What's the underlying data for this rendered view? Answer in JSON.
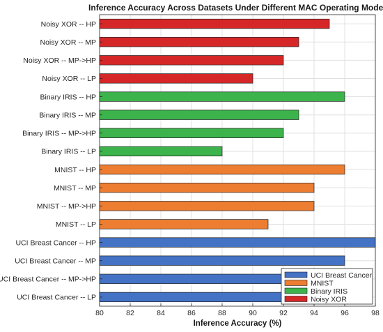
{
  "chart_data": {
    "type": "bar",
    "orientation": "horizontal",
    "title": "Inference Accuracy Across Datasets Under Different MAC Operating Modes",
    "xlabel": "Inference Accuracy (%)",
    "ylabel": "",
    "xlim": [
      80,
      98
    ],
    "xticks": [
      80,
      82,
      84,
      86,
      88,
      90,
      92,
      94,
      96,
      98
    ],
    "grid": true,
    "legend_position": "bottom-right",
    "categories": [
      "Noisy XOR -- HP",
      "Noisy XOR -- MP",
      "Noisy XOR -- MP->HP",
      "Noisy XOR -- LP",
      "Binary IRIS -- HP",
      "Binary IRIS -- MP",
      "Binary IRIS -- MP->HP",
      "Binary IRIS -- LP",
      "MNIST -- HP",
      "MNIST -- MP",
      "MNIST -- MP->HP",
      "MNIST -- LP",
      "UCI Breast Cancer -- HP",
      "UCI Breast Cancer -- MP",
      "UCI Breast Cancer -- MP->HP",
      "UCI Breast Cancer -- LP"
    ],
    "values": [
      95,
      93,
      92,
      90,
      96,
      93,
      92,
      88,
      96,
      94,
      94,
      91,
      98,
      96,
      95,
      92
    ],
    "bar_series": [
      3,
      3,
      3,
      3,
      2,
      2,
      2,
      2,
      1,
      1,
      1,
      1,
      0,
      0,
      0,
      0
    ],
    "series": [
      {
        "name": "UCI Breast Cancer",
        "color": "#4472c4"
      },
      {
        "name": "MNIST",
        "color": "#ed7d31"
      },
      {
        "name": "Binary IRIS",
        "color": "#3cb44b"
      },
      {
        "name": "Noisy XOR",
        "color": "#d62728"
      }
    ]
  }
}
